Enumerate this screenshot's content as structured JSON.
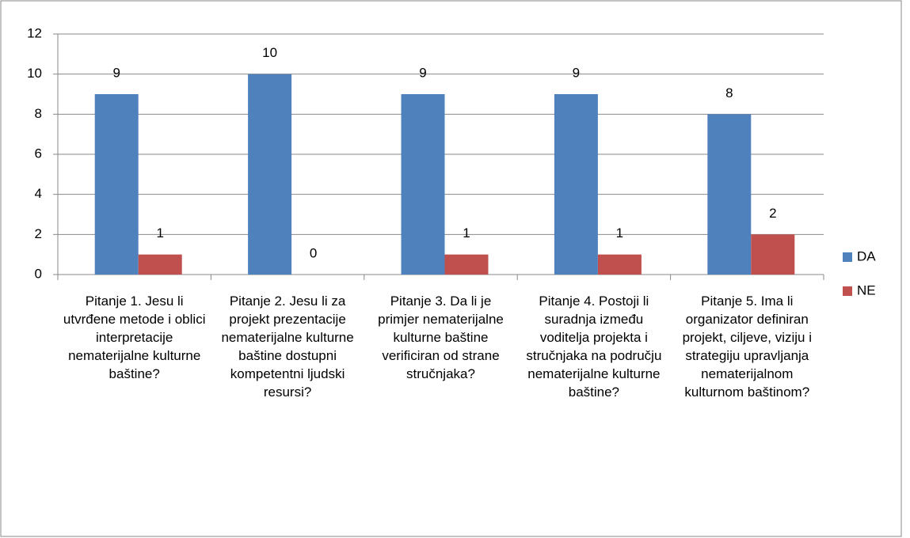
{
  "chart_data": {
    "type": "bar",
    "categories": [
      "Pitanje 1. Jesu li utvrđene metode i oblici interpretacije nematerijalne kulturne baštine?",
      "Pitanje 2. Jesu li za projekt prezentacije nematerijalne kulturne baštine dostupni kompetentni ljudski resursi?",
      "Pitanje 3. Da li je primjer nematerijalne kulturne baštine verificiran od strane stručnjaka?",
      "Pitanje 4. Postoji li suradnja između voditelja projekta i stručnjaka na području nematerijalne kulturne baštine?",
      "Pitanje 5. Ima li organizator definiran projekt, ciljeve, viziju i strategiju upravljanja nematerijalnom kulturnom baštinom?"
    ],
    "series": [
      {
        "name": "DA",
        "color": "#4f81bd",
        "values": [
          9,
          10,
          9,
          9,
          8
        ]
      },
      {
        "name": "NE",
        "color": "#c0504d",
        "values": [
          1,
          0,
          1,
          1,
          2
        ]
      }
    ],
    "ylim": [
      0,
      12
    ],
    "yticks": [
      0,
      2,
      4,
      6,
      8,
      10,
      12
    ],
    "grid": true,
    "legend": "right"
  }
}
